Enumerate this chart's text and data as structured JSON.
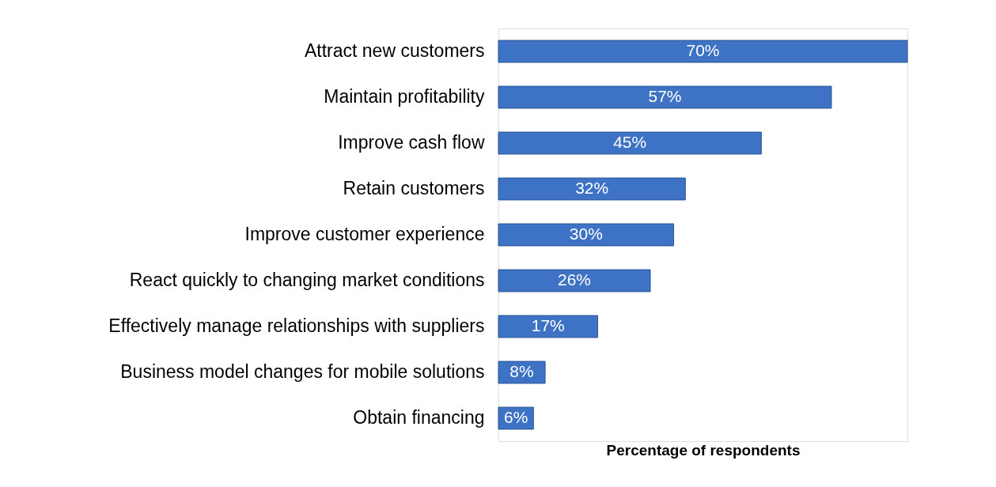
{
  "chart_data": {
    "type": "bar",
    "orientation": "horizontal",
    "categories": [
      "Attract new customers",
      "Maintain profitability",
      "Improve cash flow",
      "Retain customers",
      "Improve customer experience",
      "React quickly to changing market conditions",
      "Effectively manage relationships with suppliers",
      "Business model changes for mobile solutions",
      "Obtain financing"
    ],
    "values": [
      70,
      57,
      45,
      32,
      30,
      26,
      17,
      8,
      6
    ],
    "value_labels": [
      "70%",
      "57%",
      "45%",
      "32%",
      "30%",
      "26%",
      "17%",
      "8%",
      "6%"
    ],
    "color": "#3d72c4",
    "xlabel": "Percentage of respondents",
    "tick_labels": "y",
    "grid": false,
    "legend": false
  }
}
